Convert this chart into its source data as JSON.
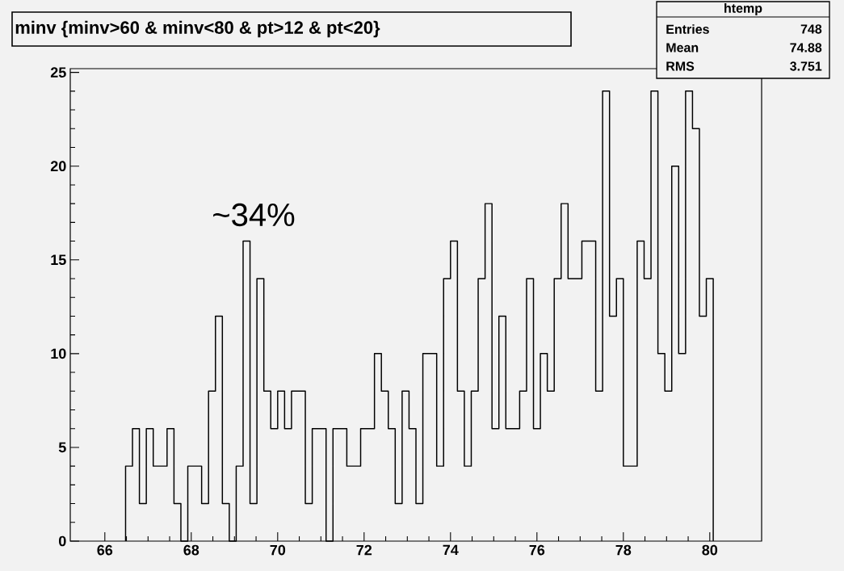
{
  "chart_data": {
    "type": "histogram",
    "title": "minv {minv>60 & minv<80 & pt>12 & pt<20}",
    "color": "#000000",
    "bins": [
      66.48,
      66.64,
      66.8,
      66.96,
      67.12,
      67.28,
      67.44,
      67.6,
      67.76,
      67.92,
      68.08,
      68.24,
      68.4,
      68.56,
      68.72,
      68.88,
      69.04,
      69.2,
      69.36,
      69.52,
      69.68,
      69.84,
      70.0,
      70.16,
      70.32,
      70.48,
      70.64,
      70.8,
      70.96,
      71.12,
      71.28,
      71.44,
      71.6,
      71.76,
      71.92,
      72.08,
      72.24,
      72.4,
      72.56,
      72.72,
      72.88,
      73.04,
      73.2,
      73.36,
      73.52,
      73.68,
      73.84,
      74.0,
      74.16,
      74.32,
      74.48,
      74.64,
      74.8,
      74.96,
      75.12,
      75.28,
      75.44,
      75.6,
      75.76,
      75.92,
      76.08,
      76.24,
      76.4,
      76.56,
      76.72,
      76.88,
      77.04,
      77.2,
      77.36,
      77.52,
      77.68,
      77.84,
      78.0,
      78.16,
      78.32,
      78.48,
      78.64,
      78.8,
      78.96,
      79.12,
      79.28,
      79.44,
      79.6,
      79.76,
      79.92,
      80.08
    ],
    "values": [
      4,
      6,
      2,
      6,
      4,
      4,
      6,
      2,
      0,
      4,
      4,
      2,
      8,
      12,
      2,
      0,
      4,
      16,
      2,
      14,
      8,
      6,
      8,
      6,
      8,
      8,
      2,
      6,
      6,
      0,
      6,
      6,
      4,
      4,
      6,
      6,
      10,
      8,
      6,
      2,
      8,
      6,
      2,
      10,
      10,
      4,
      14,
      16,
      8,
      4,
      8,
      14,
      18,
      6,
      12,
      6,
      6,
      8,
      14,
      6,
      10,
      8,
      14,
      18,
      14,
      14,
      16,
      16,
      8,
      24,
      12,
      14,
      4,
      4,
      16,
      14,
      24,
      10,
      8,
      20,
      10,
      24,
      22,
      12,
      14
    ],
    "xlim": [
      65.2,
      81.2
    ],
    "ylim": [
      0,
      25.2
    ],
    "xticks": [
      66,
      68,
      70,
      72,
      74,
      76,
      78,
      80
    ],
    "yticks": [
      0,
      5,
      10,
      15,
      20,
      25
    ],
    "annotations": [
      "~34%",
      "htemp",
      "Entries",
      "748",
      "Mean",
      "74.88",
      "RMS",
      "3.751"
    ]
  }
}
